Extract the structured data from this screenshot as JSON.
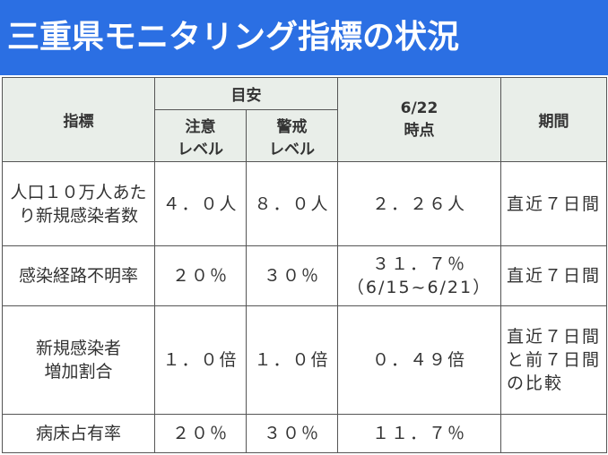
{
  "header": {
    "title": "三重県モニタリング指標の状況"
  },
  "table": {
    "headers": {
      "indicator": "指標",
      "guideline": "目安",
      "caution": "注意\nレベル",
      "warning": "警戒\nレベル",
      "current": "6/22\n時点",
      "period": "期間"
    },
    "rows": [
      [
        "人口１０万人あたり新規感染者数",
        "４．０人",
        "８．０人",
        "２．２６人",
        "直近７日間"
      ],
      [
        "感染経路不明率",
        "２０％",
        "３０％",
        "３１．７％\n（6/15~6/21）",
        "直近７日間"
      ],
      [
        "新規感染者\n増加割合",
        "１．０倍",
        "１．０倍",
        "０．４９倍",
        "直近７日間と前７日間の比較"
      ],
      [
        "病床占有率",
        "２０％",
        "３０％",
        "１１．７％"
      ]
    ]
  }
}
